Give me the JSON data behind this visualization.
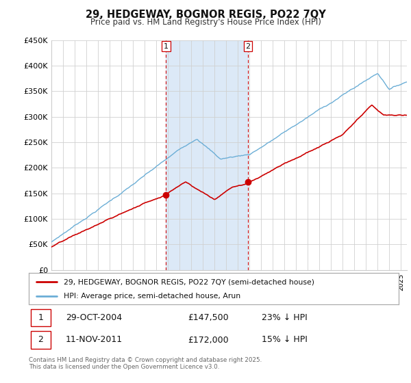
{
  "title": "29, HEDGEWAY, BOGNOR REGIS, PO22 7QY",
  "subtitle": "Price paid vs. HM Land Registry's House Price Index (HPI)",
  "ylabel_ticks": [
    "£0",
    "£50K",
    "£100K",
    "£150K",
    "£200K",
    "£250K",
    "£300K",
    "£350K",
    "£400K",
    "£450K"
  ],
  "ylim": [
    0,
    450000
  ],
  "ytick_vals": [
    0,
    50000,
    100000,
    150000,
    200000,
    250000,
    300000,
    350000,
    400000,
    450000
  ],
  "xlim_start": 1995.0,
  "xlim_end": 2025.5,
  "marker1_x": 2004.83,
  "marker1_y": 147500,
  "marker1_label": "1",
  "marker1_date": "29-OCT-2004",
  "marker1_price": "£147,500",
  "marker1_hpi": "23% ↓ HPI",
  "marker2_x": 2011.87,
  "marker2_y": 172000,
  "marker2_label": "2",
  "marker2_date": "11-NOV-2011",
  "marker2_price": "£172,000",
  "marker2_hpi": "15% ↓ HPI",
  "hpi_color": "#6baed6",
  "price_color": "#cc0000",
  "shading_color": "#dce9f7",
  "legend_line1": "29, HEDGEWAY, BOGNOR REGIS, PO22 7QY (semi-detached house)",
  "legend_line2": "HPI: Average price, semi-detached house, Arun",
  "footnote": "Contains HM Land Registry data © Crown copyright and database right 2025.\nThis data is licensed under the Open Government Licence v3.0.",
  "background_color": "#ffffff"
}
